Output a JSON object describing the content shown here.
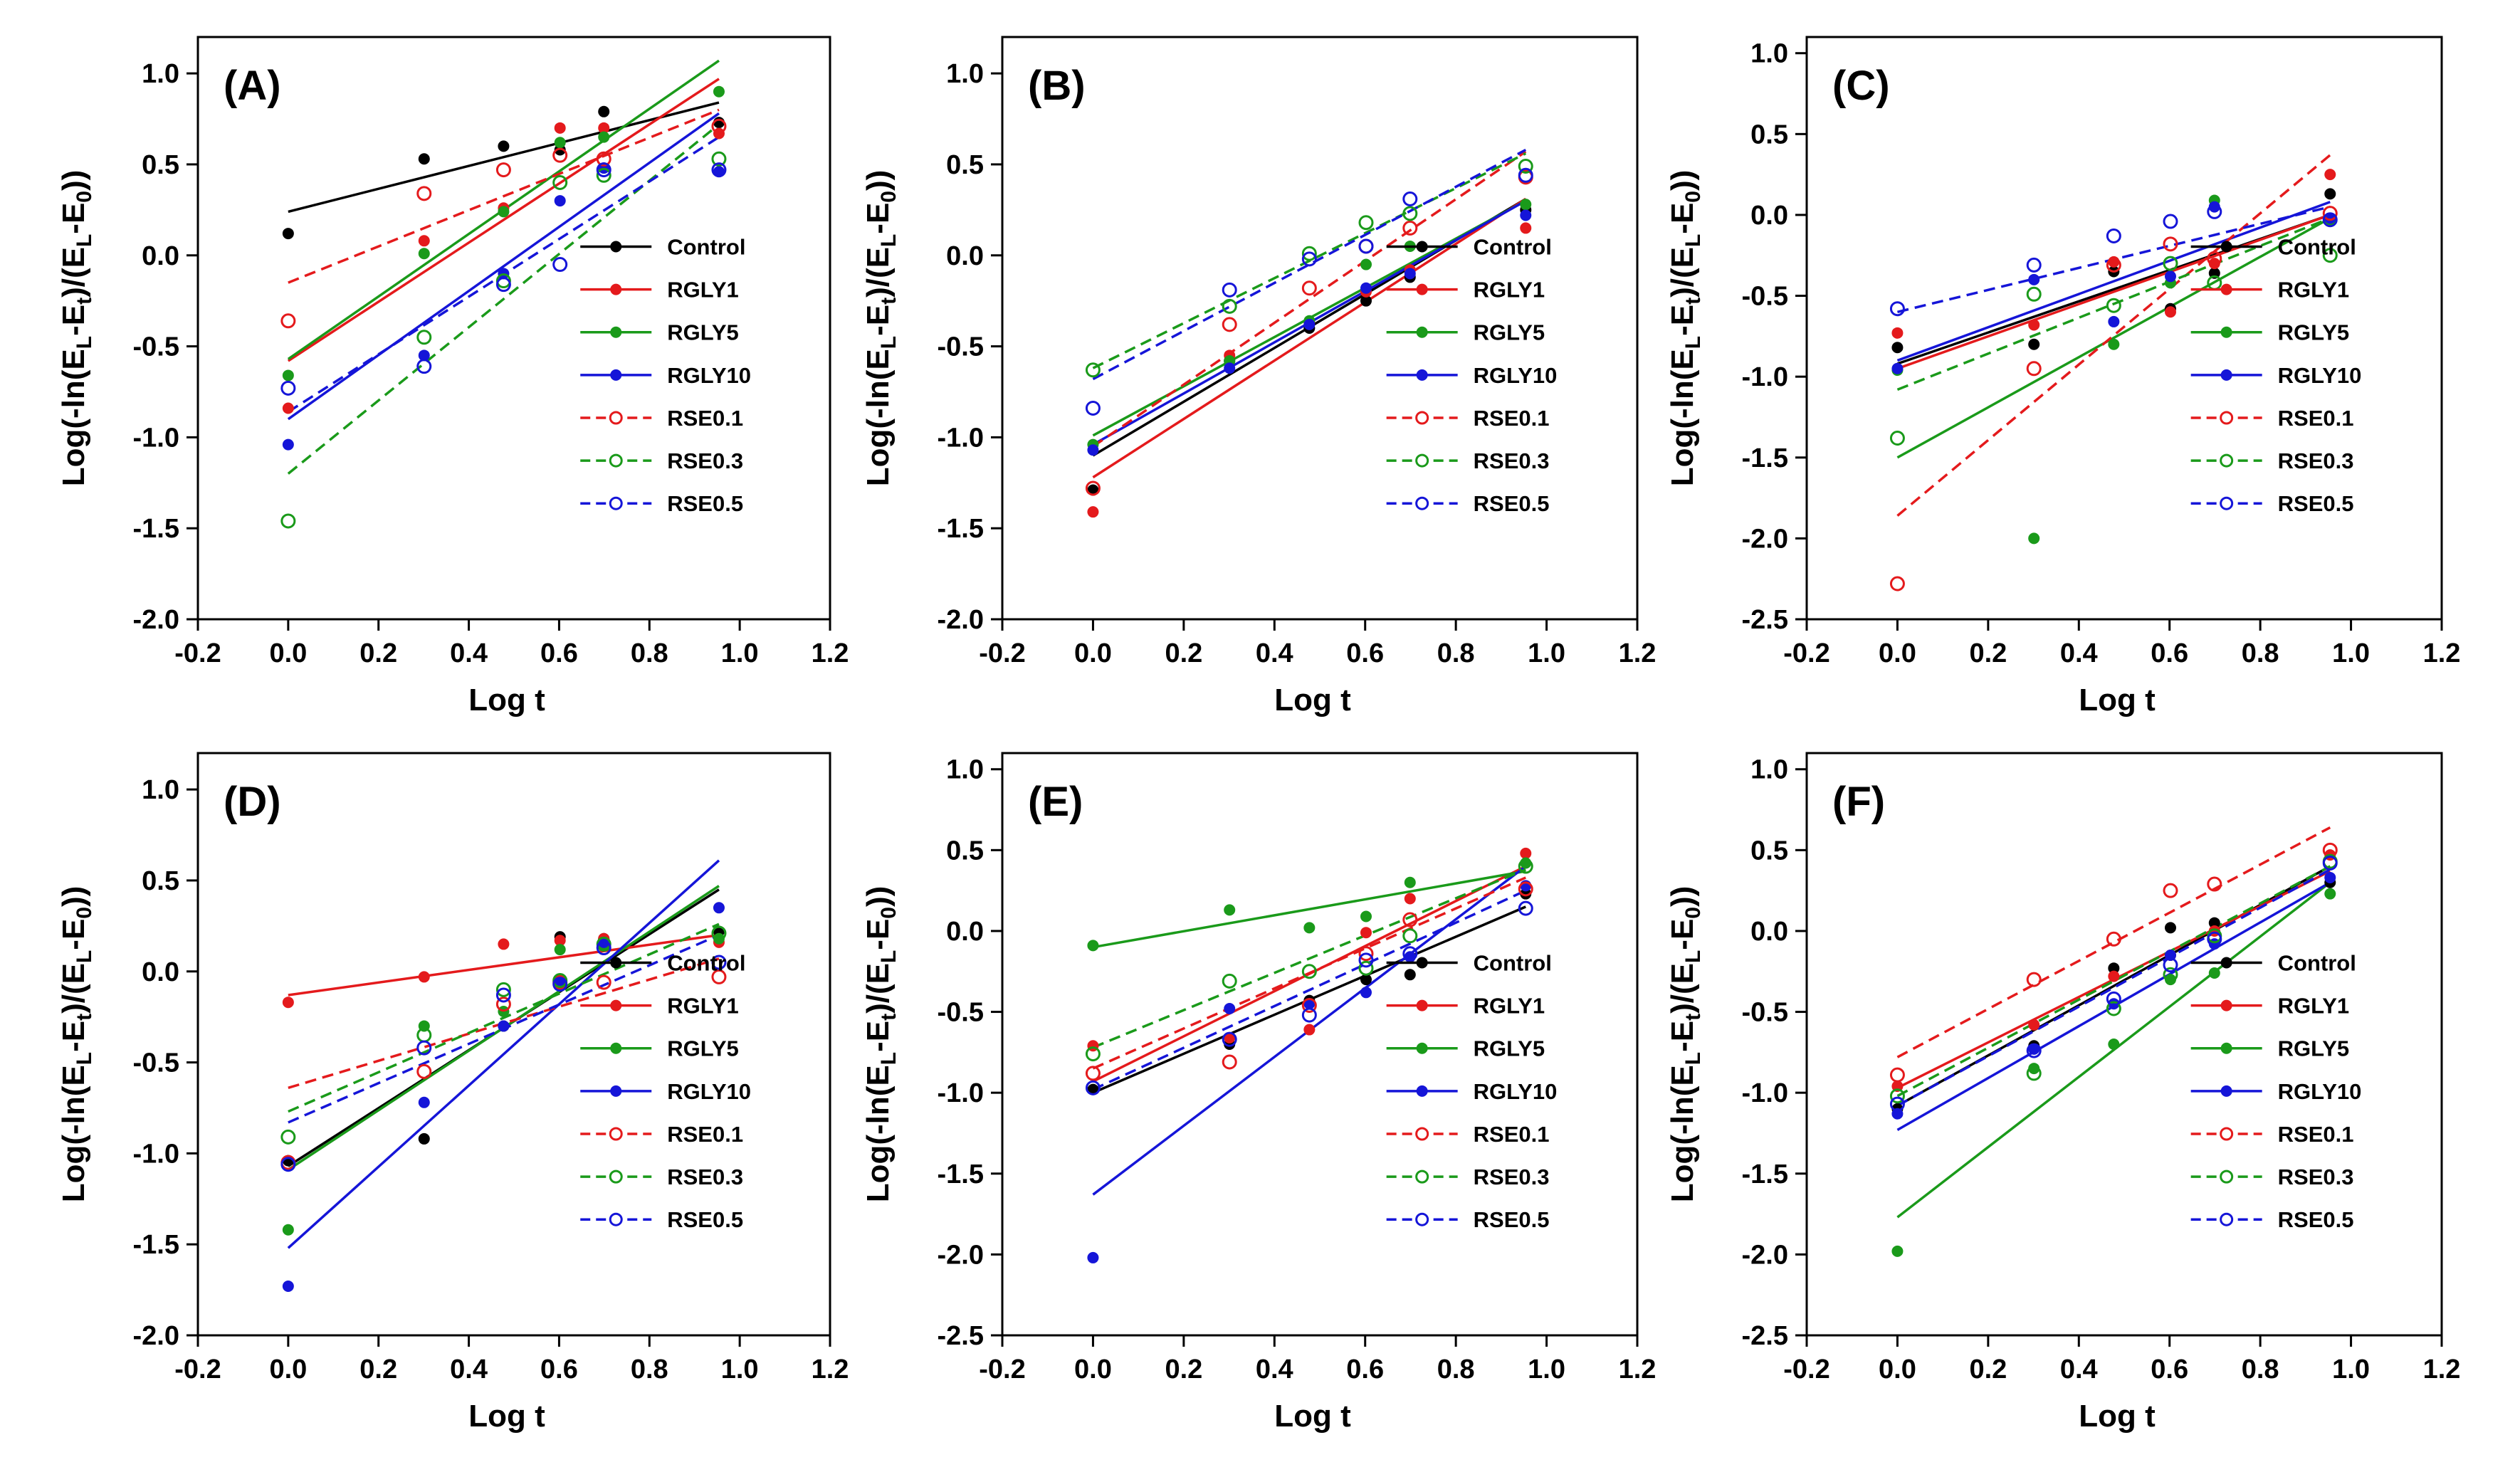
{
  "figure": {
    "xlabel": "Log t",
    "series_styles": [
      {
        "name": "Control",
        "color": "#000000",
        "dashed": false,
        "open": false
      },
      {
        "name": "RGLY1",
        "color": "#e41a1c",
        "dashed": false,
        "open": false
      },
      {
        "name": "RGLY5",
        "color": "#1a9a1a",
        "dashed": false,
        "open": false
      },
      {
        "name": "RGLY10",
        "color": "#1515d8",
        "dashed": false,
        "open": false
      },
      {
        "name": "RSE0.1",
        "color": "#e41a1c",
        "dashed": true,
        "open": true
      },
      {
        "name": "RSE0.3",
        "color": "#1a9a1a",
        "dashed": true,
        "open": true
      },
      {
        "name": "RSE0.5",
        "color": "#1515d8",
        "dashed": true,
        "open": true
      }
    ]
  },
  "chart_data": [
    {
      "type": "scatter",
      "panel": "(A)",
      "ylabel": "Log(-ln(E_L-E_t)/(E_L-E_0))",
      "xlabel": "Log t",
      "xlim": [
        -0.2,
        1.2
      ],
      "ylim": [
        -2.0,
        1.2
      ],
      "xticks": [
        -0.2,
        0.0,
        0.2,
        0.4,
        0.6,
        0.8,
        1.0,
        1.2
      ],
      "yticks": [
        -2.0,
        -1.5,
        -1.0,
        -0.5,
        0.0,
        0.5,
        1.0
      ],
      "x": [
        0,
        0.301,
        0.477,
        0.602,
        0.699,
        0.954
      ],
      "legend_position": "lower-right",
      "series": [
        {
          "name": "Control",
          "values": [
            0.12,
            0.53,
            0.6,
            0.58,
            0.79,
            0.73
          ],
          "fit": [
            0.24,
            0.84
          ]
        },
        {
          "name": "RGLY1",
          "values": [
            -0.84,
            0.08,
            0.26,
            0.7,
            0.7,
            0.67
          ],
          "fit": [
            -0.58,
            0.97
          ]
        },
        {
          "name": "RGLY5",
          "values": [
            -0.66,
            0.01,
            0.24,
            0.62,
            0.65,
            0.9
          ],
          "fit": [
            -0.57,
            1.07
          ]
        },
        {
          "name": "RGLY10",
          "values": [
            -1.04,
            -0.55,
            -0.1,
            0.3,
            0.48,
            0.46
          ],
          "fit": [
            -0.9,
            0.78
          ]
        },
        {
          "name": "RSE0.1",
          "values": [
            -0.36,
            0.34,
            0.47,
            0.55,
            0.53,
            0.71
          ],
          "fit": [
            -0.15,
            0.8
          ]
        },
        {
          "name": "RSE0.3",
          "values": [
            -1.46,
            -0.45,
            -0.14,
            0.4,
            0.44,
            0.53
          ],
          "fit": [
            -1.2,
            0.72
          ]
        },
        {
          "name": "RSE0.5",
          "values": [
            -0.73,
            -0.61,
            -0.16,
            -0.05,
            0.47,
            0.47
          ],
          "fit": [
            -0.86,
            0.65
          ]
        }
      ]
    },
    {
      "type": "scatter",
      "panel": "(B)",
      "ylabel": "Log(-ln(E_L-E_t)/(E_L-E_0))",
      "xlabel": "Log t",
      "xlim": [
        -0.2,
        1.2
      ],
      "ylim": [
        -2.0,
        1.2
      ],
      "xticks": [
        -0.2,
        0.0,
        0.2,
        0.4,
        0.6,
        0.8,
        1.0,
        1.2
      ],
      "yticks": [
        -2.0,
        -1.5,
        -1.0,
        -0.5,
        0.0,
        0.5,
        1.0
      ],
      "x": [
        0,
        0.301,
        0.477,
        0.602,
        0.699,
        0.954
      ],
      "legend_position": "lower-right",
      "series": [
        {
          "name": "Control",
          "values": [
            -1.29,
            -0.58,
            -0.4,
            -0.25,
            -0.12,
            0.25
          ],
          "fit": [
            -1.1,
            0.31
          ]
        },
        {
          "name": "RGLY1",
          "values": [
            -1.41,
            -0.55,
            -0.37,
            -0.2,
            -0.08,
            0.15
          ],
          "fit": [
            -1.22,
            0.31
          ]
        },
        {
          "name": "RGLY5",
          "values": [
            -1.04,
            -0.58,
            -0.36,
            -0.05,
            0.05,
            0.28
          ],
          "fit": [
            -0.99,
            0.3
          ]
        },
        {
          "name": "RGLY10",
          "values": [
            -1.07,
            -0.62,
            -0.38,
            -0.18,
            -0.1,
            0.22
          ],
          "fit": [
            -1.04,
            0.3
          ]
        },
        {
          "name": "RSE0.1",
          "values": [
            -1.28,
            -0.38,
            -0.18,
            0.05,
            0.15,
            0.43
          ],
          "fit": [
            -1.05,
            0.57
          ]
        },
        {
          "name": "RSE0.3",
          "values": [
            -0.63,
            -0.28,
            0.01,
            0.18,
            0.23,
            0.49
          ],
          "fit": [
            -0.62,
            0.56
          ]
        },
        {
          "name": "RSE0.5",
          "values": [
            -0.84,
            -0.19,
            -0.02,
            0.05,
            0.31,
            0.44
          ],
          "fit": [
            -0.68,
            0.58
          ]
        }
      ]
    },
    {
      "type": "scatter",
      "panel": "(C)",
      "ylabel": "Log(-ln(E_L-E_t)/(E_L-E_0))",
      "xlabel": "Log t",
      "xlim": [
        -0.2,
        1.2
      ],
      "ylim": [
        -2.5,
        1.1
      ],
      "xticks": [
        -0.2,
        0.0,
        0.2,
        0.4,
        0.6,
        0.8,
        1.0,
        1.2
      ],
      "yticks": [
        -2.5,
        -2.0,
        -1.5,
        -1.0,
        -0.5,
        0.0,
        0.5,
        1.0
      ],
      "x": [
        0,
        0.301,
        0.477,
        0.602,
        0.699,
        0.954
      ],
      "legend_position": "lower-right",
      "series": [
        {
          "name": "Control",
          "values": [
            -0.82,
            -0.8,
            -0.35,
            -0.58,
            -0.36,
            0.13
          ],
          "fit": [
            -0.92,
            0.0
          ]
        },
        {
          "name": "RGLY1",
          "values": [
            -0.73,
            -0.68,
            -0.29,
            -0.6,
            -0.3,
            0.25
          ],
          "fit": [
            -0.95,
            0.0
          ]
        },
        {
          "name": "RGLY5",
          "values": [
            -0.96,
            -2.0,
            -0.8,
            -0.42,
            0.09,
            -0.04
          ],
          "fit": [
            -1.5,
            -0.02
          ]
        },
        {
          "name": "RGLY10",
          "values": [
            -0.95,
            -0.4,
            -0.66,
            -0.38,
            0.05,
            -0.02
          ],
          "fit": [
            -0.9,
            0.08
          ]
        },
        {
          "name": "RSE0.1",
          "values": [
            -2.28,
            -0.95,
            -0.31,
            -0.18,
            -0.27,
            0.01
          ],
          "fit": [
            -1.86,
            0.37
          ]
        },
        {
          "name": "RSE0.3",
          "values": [
            -1.38,
            -0.49,
            -0.56,
            -0.3,
            -0.42,
            -0.25
          ],
          "fit": [
            -1.08,
            -0.02
          ]
        },
        {
          "name": "RSE0.5",
          "values": [
            -0.58,
            -0.31,
            -0.13,
            -0.04,
            0.02,
            -0.03
          ],
          "fit": [
            -0.6,
            0.05
          ]
        }
      ]
    },
    {
      "type": "scatter",
      "panel": "(D)",
      "ylabel": "Log(-ln(E_L-E_t)/(E_L-E_0))",
      "xlabel": "Log t",
      "xlim": [
        -0.2,
        1.2
      ],
      "ylim": [
        -2.0,
        1.2
      ],
      "xticks": [
        -0.2,
        0.0,
        0.2,
        0.4,
        0.6,
        0.8,
        1.0,
        1.2
      ],
      "yticks": [
        -2.0,
        -1.5,
        -1.0,
        -0.5,
        0.0,
        0.5,
        1.0
      ],
      "x": [
        0,
        0.301,
        0.477,
        0.602,
        0.699,
        0.954
      ],
      "legend_position": "lower-right",
      "series": [
        {
          "name": "Control",
          "values": [
            -1.04,
            -0.92,
            -0.3,
            0.19,
            0.18,
            0.22
          ],
          "fit": [
            -1.07,
            0.45
          ]
        },
        {
          "name": "RGLY1",
          "values": [
            -0.17,
            -0.03,
            0.15,
            0.17,
            0.18,
            0.16
          ],
          "fit": [
            -0.13,
            0.2
          ]
        },
        {
          "name": "RGLY5",
          "values": [
            -1.42,
            -0.3,
            -0.22,
            0.12,
            0.15,
            0.18
          ],
          "fit": [
            -1.09,
            0.47
          ]
        },
        {
          "name": "RGLY10",
          "values": [
            -1.73,
            -0.72,
            -0.3,
            -0.06,
            0.16,
            0.35
          ],
          "fit": [
            -1.52,
            0.61
          ]
        },
        {
          "name": "RSE0.1",
          "values": [
            -1.05,
            -0.55,
            -0.18,
            -0.06,
            -0.06,
            -0.03
          ],
          "fit": [
            -0.64,
            0.07
          ]
        },
        {
          "name": "RSE0.3",
          "values": [
            -0.91,
            -0.35,
            -0.1,
            -0.05,
            0.15,
            0.21
          ],
          "fit": [
            -0.77,
            0.26
          ]
        },
        {
          "name": "RSE0.5",
          "values": [
            -1.06,
            -0.42,
            -0.13,
            -0.07,
            0.13,
            0.05
          ],
          "fit": [
            -0.83,
            0.2
          ]
        }
      ]
    },
    {
      "type": "scatter",
      "panel": "(E)",
      "ylabel": "Log(-ln(E_L-E_t)/(E_L-E_0))",
      "xlabel": "Log t",
      "xlim": [
        -0.2,
        1.2
      ],
      "ylim": [
        -2.5,
        1.1
      ],
      "xticks": [
        -0.2,
        0.0,
        0.2,
        0.4,
        0.6,
        0.8,
        1.0,
        1.2
      ],
      "yticks": [
        -2.5,
        -2.0,
        -1.5,
        -1.0,
        -0.5,
        0.0,
        0.5,
        1.0
      ],
      "x": [
        0,
        0.301,
        0.477,
        0.602,
        0.699,
        0.954
      ],
      "legend_position": "lower-right",
      "series": [
        {
          "name": "Control",
          "values": [
            -0.98,
            -0.7,
            -0.43,
            -0.3,
            -0.27,
            0.23
          ],
          "fit": [
            -1.0,
            0.15
          ]
        },
        {
          "name": "RGLY1",
          "values": [
            -0.71,
            -0.66,
            -0.61,
            -0.01,
            0.2,
            0.48
          ],
          "fit": [
            -0.93,
            0.4
          ]
        },
        {
          "name": "RGLY5",
          "values": [
            -0.09,
            0.13,
            0.02,
            0.09,
            0.3,
            0.42
          ],
          "fit": [
            -0.1,
            0.37
          ]
        },
        {
          "name": "RGLY10",
          "values": [
            -2.02,
            -0.48,
            -0.45,
            -0.38,
            -0.16,
            0.28
          ],
          "fit": [
            -1.63,
            0.4
          ]
        },
        {
          "name": "RSE0.1",
          "values": [
            -0.88,
            -0.81,
            -0.46,
            -0.14,
            0.07,
            0.26
          ],
          "fit": [
            -0.85,
            0.33
          ]
        },
        {
          "name": "RSE0.3",
          "values": [
            -0.76,
            -0.31,
            -0.25,
            -0.23,
            -0.03,
            0.4
          ],
          "fit": [
            -0.72,
            0.38
          ]
        },
        {
          "name": "RSE0.5",
          "values": [
            -0.97,
            -0.67,
            -0.52,
            -0.18,
            -0.14,
            0.14
          ],
          "fit": [
            -0.98,
            0.25
          ]
        }
      ]
    },
    {
      "type": "scatter",
      "panel": "(F)",
      "ylabel": "Log(-ln(E_L-E_t)/(E_L-E_0))",
      "xlabel": "Log t",
      "xlim": [
        -0.2,
        1.2
      ],
      "ylim": [
        -2.5,
        1.1
      ],
      "xticks": [
        -0.2,
        0.0,
        0.2,
        0.4,
        0.6,
        0.8,
        1.0,
        1.2
      ],
      "yticks": [
        -2.5,
        -2.0,
        -1.5,
        -1.0,
        -0.5,
        0.0,
        0.5,
        1.0
      ],
      "x": [
        0,
        0.301,
        0.477,
        0.602,
        0.699,
        0.954
      ],
      "legend_position": "lower-right",
      "series": [
        {
          "name": "Control",
          "values": [
            -1.1,
            -0.71,
            -0.23,
            0.02,
            0.05,
            0.3
          ],
          "fit": [
            -1.08,
            0.4
          ]
        },
        {
          "name": "RGLY1",
          "values": [
            -0.96,
            -0.58,
            -0.28,
            -0.15,
            0.0,
            0.47
          ],
          "fit": [
            -0.97,
            0.37
          ]
        },
        {
          "name": "RGLY5",
          "values": [
            -1.98,
            -0.85,
            -0.7,
            -0.3,
            -0.26,
            0.23
          ],
          "fit": [
            -1.77,
            0.3
          ]
        },
        {
          "name": "RGLY10",
          "values": [
            -1.13,
            -0.73,
            -0.45,
            -0.15,
            -0.08,
            0.33
          ],
          "fit": [
            -1.23,
            0.3
          ]
        },
        {
          "name": "RSE0.1",
          "values": [
            -0.89,
            -0.3,
            -0.05,
            0.25,
            0.29,
            0.5
          ],
          "fit": [
            -0.78,
            0.64
          ]
        },
        {
          "name": "RSE0.3",
          "values": [
            -1.02,
            -0.88,
            -0.48,
            -0.27,
            -0.03,
            0.43
          ],
          "fit": [
            -1.02,
            0.4
          ]
        },
        {
          "name": "RSE0.5",
          "values": [
            -1.07,
            -0.74,
            -0.42,
            -0.21,
            -0.05,
            0.42
          ],
          "fit": [
            -1.08,
            0.38
          ]
        }
      ]
    }
  ]
}
